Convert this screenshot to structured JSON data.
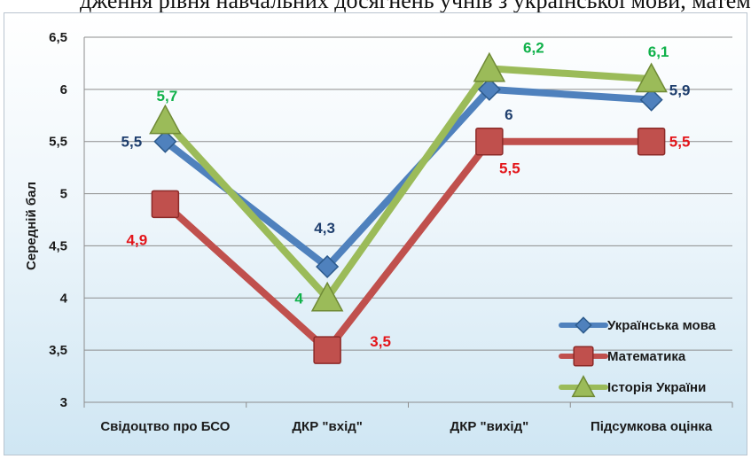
{
  "top_text": "дження рівня навчальних досягнень учнів з української мови, математики та історії України (середній бал)",
  "chart_data": {
    "type": "line",
    "title": "",
    "xlabel": "",
    "ylabel": "Середній бал",
    "ylim": [
      3,
      6.5
    ],
    "yticks": [
      "3",
      "3,5",
      "4",
      "4,5",
      "5",
      "5,5",
      "6",
      "6,5"
    ],
    "grid": true,
    "legend_position": "bottom-right",
    "categories": [
      "Свідоцтво про БСО",
      "ДКР \"вхід\"",
      "ДКР \"вихід\"",
      "Підсумкова оцінка"
    ],
    "series": [
      {
        "name": "Українська мова",
        "values": [
          5.5,
          4.3,
          6.0,
          5.9
        ],
        "labels": [
          "5,5",
          "4,3",
          "6",
          "5,9"
        ],
        "color": "#4f81bd",
        "label_color": "#1f3f6e",
        "marker": "diamond"
      },
      {
        "name": "Математика",
        "values": [
          4.9,
          3.5,
          5.5,
          5.5
        ],
        "labels": [
          "4,9",
          "3,5",
          "5,5",
          "5,5"
        ],
        "color": "#c0504d",
        "label_color": "#e3151a",
        "marker": "square"
      },
      {
        "name": "Історія України",
        "values": [
          5.7,
          4.0,
          6.2,
          6.1
        ],
        "labels": [
          "5,7",
          "4",
          "6,2",
          "6,1"
        ],
        "color": "#9bbb59",
        "label_color": "#10b14a",
        "marker": "triangle"
      }
    ]
  }
}
